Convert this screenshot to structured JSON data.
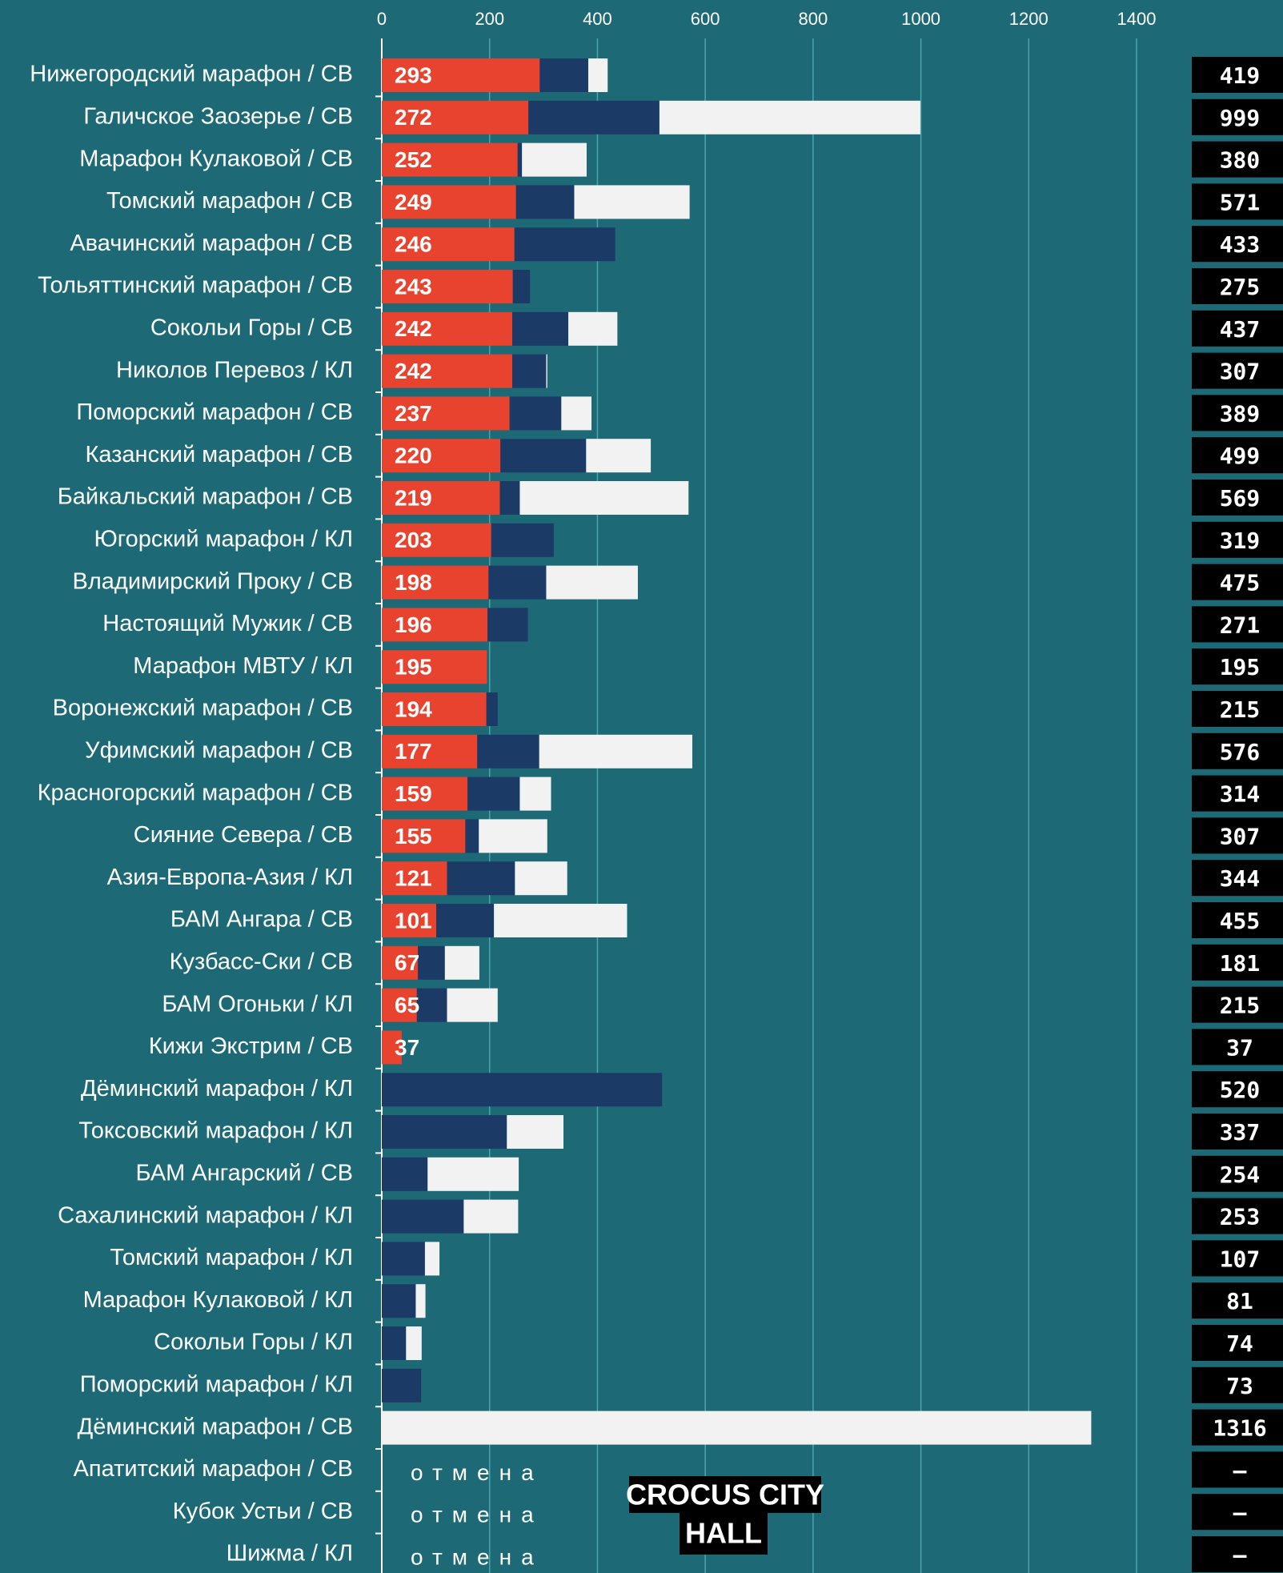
{
  "chart_data": {
    "type": "stacked-bar",
    "orientation": "horizontal",
    "categories": [
      "Нижегородский марафон / СВ",
      "Галичское Заозерье / СВ",
      "Марафон Кулаковой / СВ",
      "Томский марафон / СВ",
      "Авачинский марафон / СВ",
      "Тольяттинский марафон / СВ",
      "Сокольи Горы / СВ",
      "Николов Перевоз / КЛ",
      "Поморский марафон / СВ",
      "Казанский марафон / СВ",
      "Байкальский марафон / СВ",
      "Югорский марафон / КЛ",
      "Владимирский Проку / СВ",
      "Настоящий Мужик / СВ",
      "Марафон МВТУ / КЛ",
      "Воронежский марафон / СВ",
      "Уфимский марафон / СВ",
      "Красногорский марафон / СВ",
      "Сияние Севера / СВ",
      "Азия-Европа-Азия / КЛ",
      "БАМ Ангара / СВ",
      "Кузбасс-Ски / СВ",
      "БАМ Огоньки / КЛ",
      "Кижи Экстрим / СВ",
      "Дёминский марафон / КЛ",
      "Токсовский марафон / КЛ",
      "БАМ Ангарский / СВ",
      "Сахалинский марафон / КЛ",
      "Томский марафон / КЛ",
      "Марафон Кулаковой / КЛ",
      "Сокольи Горы / КЛ",
      "Поморский марафон / КЛ",
      "Дёминский марафон / СВ",
      "Апатитский марафон / СВ",
      "Кубок Устьи  / СВ",
      "Шижма / КЛ"
    ],
    "series": [
      {
        "color": "#e8432f",
        "values": [
          293,
          272,
          252,
          249,
          246,
          243,
          242,
          242,
          237,
          220,
          219,
          203,
          198,
          196,
          195,
          194,
          177,
          159,
          155,
          121,
          101,
          67,
          65,
          37,
          null,
          null,
          null,
          null,
          null,
          null,
          null,
          null,
          null,
          null,
          null,
          null
        ]
      },
      {
        "color": "#1b3a66",
        "values": [
          90,
          243,
          8,
          108,
          187,
          32,
          104,
          63,
          96,
          159,
          37,
          116,
          107,
          75,
          null,
          21,
          115,
          97,
          25,
          126,
          107,
          50,
          56,
          null,
          520,
          232,
          85,
          152,
          80,
          63,
          45,
          73,
          null,
          null,
          null,
          null
        ]
      },
      {
        "color": "#f2f2f2",
        "values": [
          36,
          484,
          120,
          214,
          null,
          null,
          91,
          2,
          56,
          120,
          313,
          null,
          170,
          null,
          null,
          null,
          284,
          58,
          127,
          97,
          247,
          64,
          94,
          null,
          null,
          105,
          169,
          101,
          27,
          18,
          29,
          null,
          1316,
          null,
          null,
          null
        ]
      }
    ],
    "totals": [
      419,
      999,
      380,
      571,
      433,
      275,
      437,
      307,
      389,
      499,
      569,
      319,
      475,
      271,
      195,
      215,
      576,
      314,
      307,
      344,
      455,
      181,
      215,
      37,
      520,
      337,
      254,
      253,
      107,
      81,
      74,
      73,
      1316,
      null,
      null,
      null
    ],
    "no_total_label": "–",
    "cancel_text": "отмена",
    "logo": [
      "CROCUS CITY",
      "HALL"
    ],
    "xlim": [
      0,
      1400
    ],
    "xticks": [
      0,
      200,
      400,
      600,
      800,
      1000,
      1200,
      1400
    ],
    "grid": true
  }
}
